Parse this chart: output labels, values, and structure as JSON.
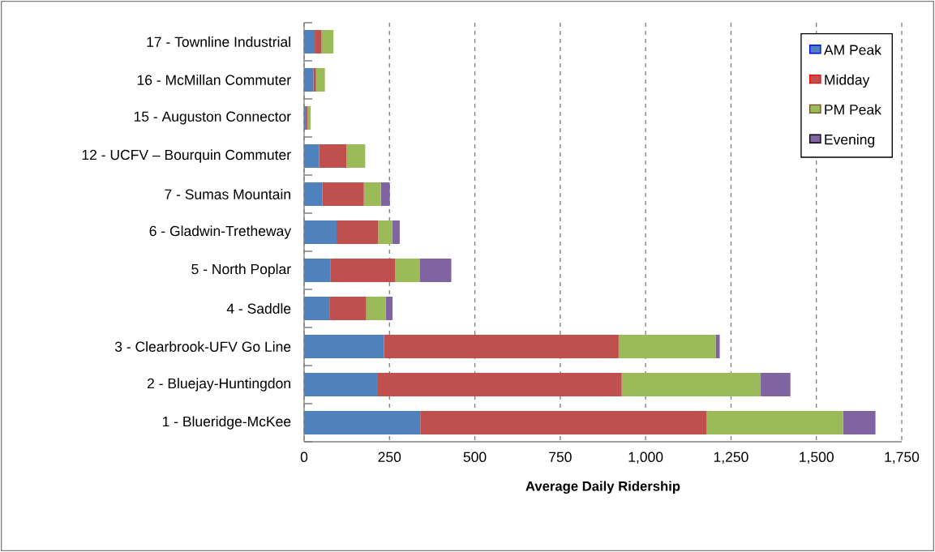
{
  "chart_data": {
    "type": "bar",
    "orientation": "horizontal",
    "stacked": true,
    "xlabel": "Average Daily Ridership",
    "categories": [
      "17 - Townline Industrial",
      "16 - McMillan Commuter",
      "15 - Auguston Connector",
      "12 - UCFV – Bourquin Commuter",
      "7 - Sumas Mountain",
      "6 - Gladwin-Tretheway",
      "5 - North Poplar",
      "4 - Saddle",
      "3 - Clearbrook-UFV Go Line",
      "2 - Bluejay-Huntingdon",
      "1 - Blueridge-McKee"
    ],
    "series": [
      {
        "name": "AM Peak",
        "color": "#4f81bd",
        "values": [
          31,
          27,
          5,
          44,
          53,
          95,
          78,
          74,
          234,
          216,
          340
        ]
      },
      {
        "name": "Midday",
        "color": "#c0504d",
        "values": [
          20,
          8,
          5,
          80,
          122,
          122,
          189,
          108,
          687,
          714,
          839
        ]
      },
      {
        "name": "PM Peak",
        "color": "#9bbb59",
        "values": [
          35,
          26,
          9,
          55,
          50,
          42,
          71,
          57,
          284,
          407,
          399
        ]
      },
      {
        "name": "Evening",
        "color": "#8064a2",
        "values": [
          null,
          null,
          null,
          null,
          26,
          21,
          93,
          20,
          12,
          87,
          95
        ]
      }
    ],
    "xlim": [
      0,
      1750
    ],
    "xticks": [
      0,
      250,
      500,
      750,
      {
        "value": 1000,
        "label": "1,000"
      },
      {
        "value": 1250,
        "label": "1,250"
      },
      {
        "value": 1500,
        "label": "1,500"
      },
      {
        "value": 1750,
        "label": "1,750"
      }
    ],
    "grid": "x",
    "legend": "top right"
  }
}
